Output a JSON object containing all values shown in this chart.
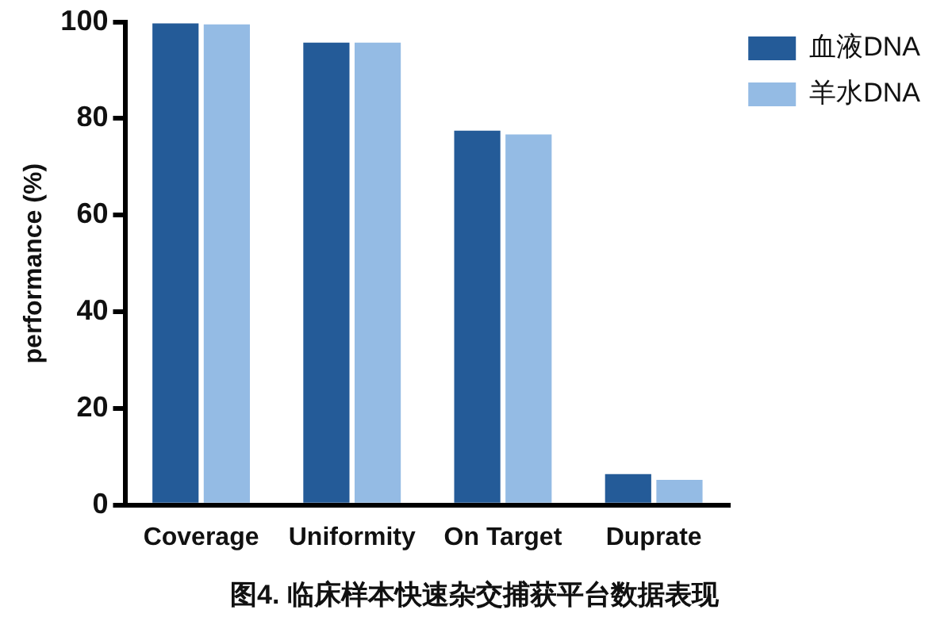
{
  "chart_data": {
    "type": "bar",
    "title": "图4. 临床样本快速杂交捕获平台数据表现",
    "ylabel": "performance (%)",
    "categories": [
      "Coverage",
      "Uniformity",
      "On Target",
      "Duprate"
    ],
    "series": [
      {
        "name": "血液DNA",
        "color": "#245b98",
        "values": [
          99.7,
          95.7,
          77.5,
          6.4
        ]
      },
      {
        "name": "羊水DNA",
        "color": "#94bbe4",
        "values": [
          99.5,
          95.7,
          76.7,
          5.2
        ]
      }
    ],
    "ylim": [
      0,
      100
    ],
    "yticks": [
      0,
      20,
      40,
      60,
      80,
      100
    ],
    "grid": false,
    "legend": "top right"
  }
}
